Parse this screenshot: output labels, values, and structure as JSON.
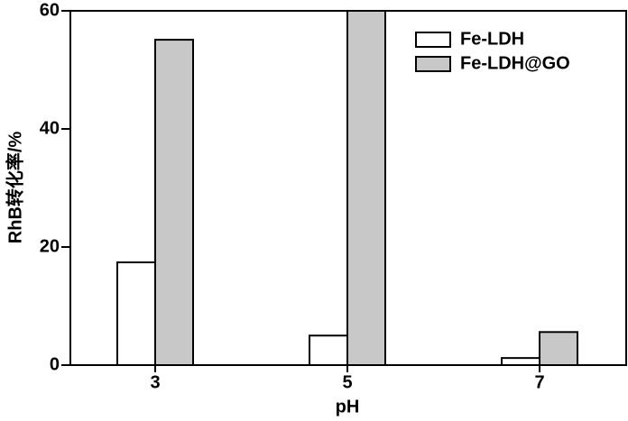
{
  "chart_data": {
    "type": "bar",
    "x_label": "pH",
    "y_label": "RhB转化率/%",
    "categories": [
      "3",
      "5",
      "7"
    ],
    "series": [
      {
        "name": "Fe-LDH",
        "color": "#ffffff",
        "values": [
          17.4,
          5.0,
          1.2
        ]
      },
      {
        "name": "Fe-LDH@GO",
        "color": "#c8c8c8",
        "values": [
          55.1,
          60,
          5.6
        ]
      }
    ],
    "ylim": [
      0,
      60
    ],
    "yticks": [
      0,
      20,
      40,
      60
    ],
    "legend": "upper right"
  }
}
